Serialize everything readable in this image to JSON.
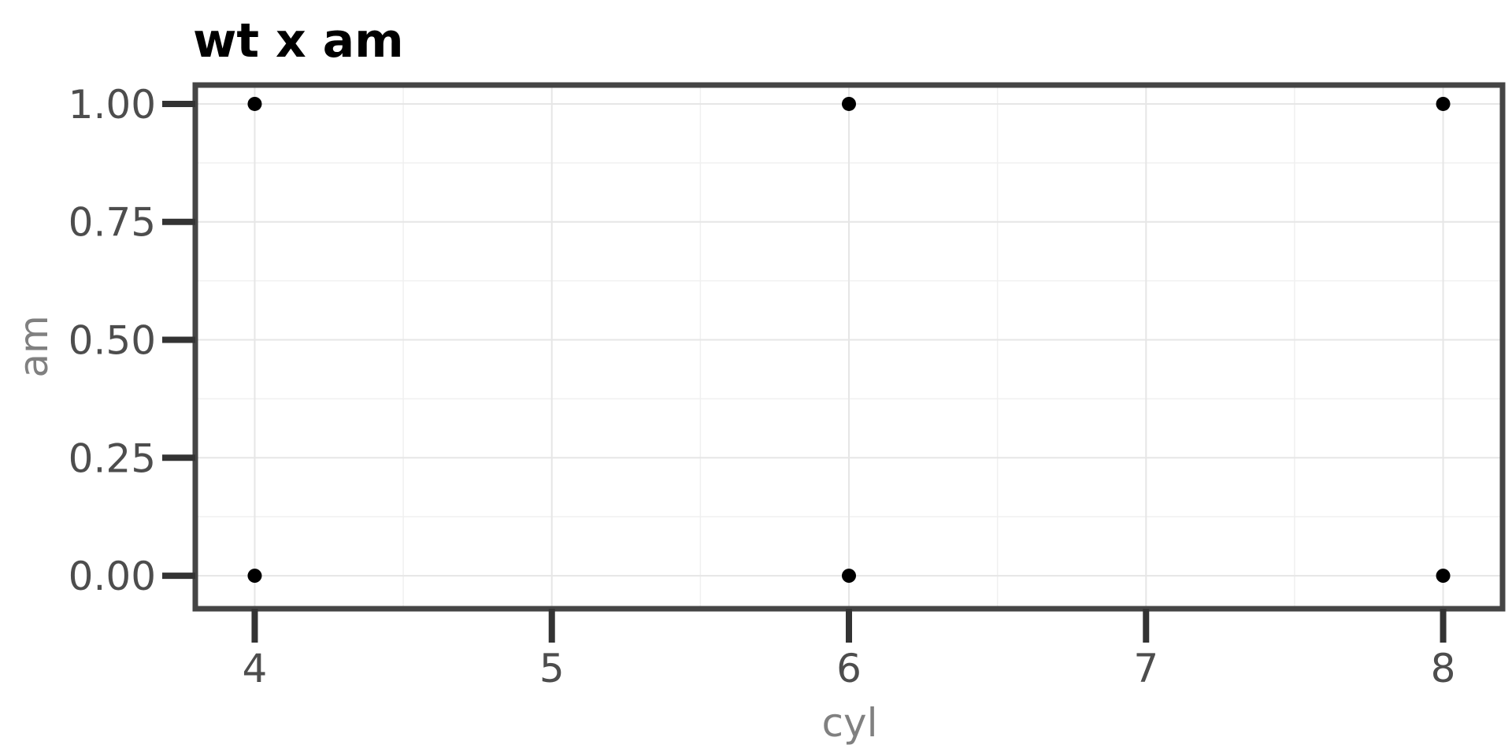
{
  "chart_data": {
    "type": "scatter",
    "title": "wt x am",
    "xlabel": "cyl",
    "ylabel": "am",
    "xlim": [
      3.8,
      8.2
    ],
    "ylim": [
      -0.07,
      1.04
    ],
    "x_ticks": [
      4,
      5,
      6,
      7,
      8
    ],
    "x_tick_labels": [
      "4",
      "5",
      "6",
      "7",
      "8"
    ],
    "y_ticks": [
      0,
      0.25,
      0.5,
      0.75,
      1
    ],
    "y_tick_labels": [
      "0.00",
      "0.25",
      "0.50",
      "0.75",
      "1.00"
    ],
    "x_minor_ticks": [
      4.5,
      5.5,
      6.5,
      7.5
    ],
    "y_minor_ticks": [
      0.125,
      0.375,
      0.625,
      0.875
    ],
    "grid": true,
    "series": [
      {
        "points": [
          {
            "x": 4,
            "y": 1
          },
          {
            "x": 6,
            "y": 1
          },
          {
            "x": 8,
            "y": 1
          },
          {
            "x": 4,
            "y": 0
          },
          {
            "x": 6,
            "y": 0
          },
          {
            "x": 8,
            "y": 0
          }
        ],
        "color": "#000000"
      }
    ],
    "colors": {
      "point": "#000000",
      "panel_border": "#454545",
      "tick": "#333333",
      "tick_label": "#4d4d4d",
      "axis_title": "#808080",
      "grid": "#e6e6e6",
      "background": "#ffffff"
    }
  }
}
